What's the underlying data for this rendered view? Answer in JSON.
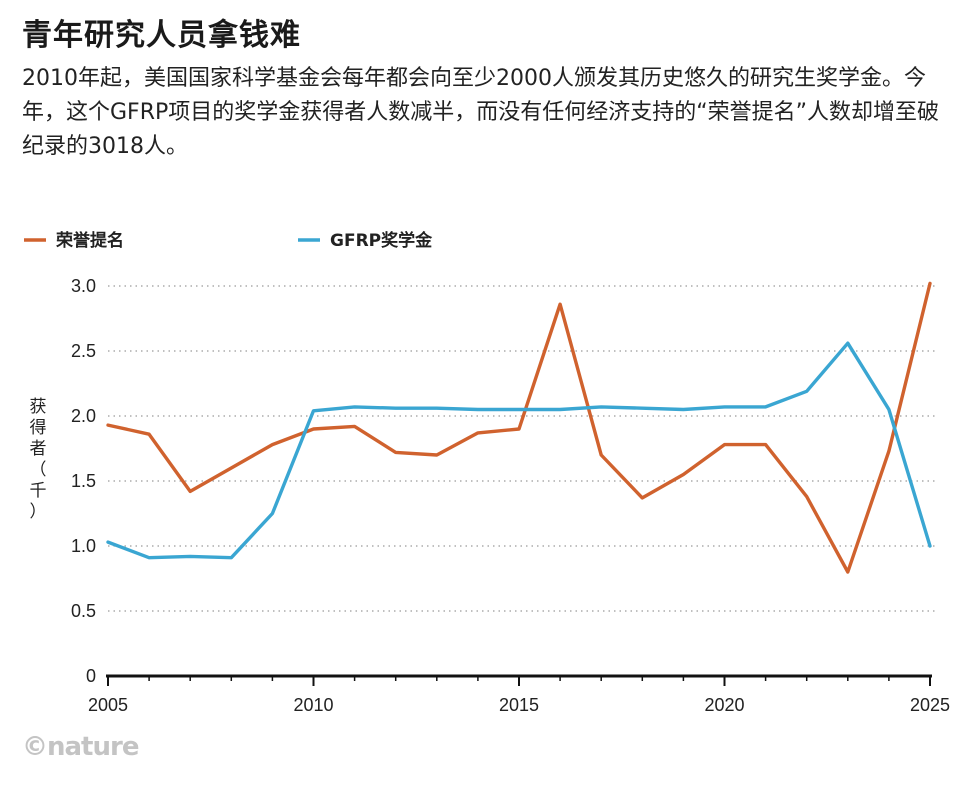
{
  "title": "青年研究人员拿钱难",
  "subtitle": "2010年起，美国国家科学基金会每年都会向至少2000人颁发其历史悠久的研究生奖学金。今年，这个GFRP项目的奖学金获得者人数减半，而没有任何经济支持的“荣誉提名”人数却增至破纪录的3018人。",
  "credit": "©nature",
  "colors": {
    "honorable": "#d0622e",
    "grfp": "#3aa6d2",
    "axis": "#111111",
    "grid": "#9a9a9a"
  },
  "chart_data": {
    "type": "line",
    "title": "青年研究人员拿钱难",
    "xlabel": "",
    "ylabel": "获得者（千）",
    "ylabel_chars": [
      "获",
      "得",
      "者",
      "（",
      "千",
      "）"
    ],
    "xlim": [
      2005,
      2025
    ],
    "ylim": [
      0,
      3.0
    ],
    "xticks": [
      2005,
      2010,
      2015,
      2020,
      2025
    ],
    "xtick_labels": [
      "2005",
      "2010",
      "2015",
      "2020",
      "2025"
    ],
    "yticks": [
      0,
      0.5,
      1.0,
      1.5,
      2.0,
      2.5,
      3.0
    ],
    "ytick_labels": [
      "0",
      "0.5",
      "1.0",
      "1.5",
      "2.0",
      "2.5",
      "3.0"
    ],
    "grid": "horizontal-dotted",
    "legend": "top-left",
    "x": [
      2005,
      2006,
      2007,
      2008,
      2009,
      2010,
      2011,
      2012,
      2013,
      2014,
      2015,
      2016,
      2017,
      2018,
      2019,
      2020,
      2021,
      2022,
      2023,
      2024,
      2025
    ],
    "series": [
      {
        "name": "荣誉提名",
        "color": "#d0622e",
        "values": [
          1.93,
          1.86,
          1.42,
          1.6,
          1.78,
          1.9,
          1.92,
          1.72,
          1.7,
          1.87,
          1.9,
          2.86,
          1.7,
          1.37,
          1.55,
          1.78,
          1.78,
          1.38,
          0.8,
          1.73,
          3.02
        ]
      },
      {
        "name": "GFRP奖学金",
        "color": "#3aa6d2",
        "values": [
          1.03,
          0.91,
          0.92,
          0.91,
          1.25,
          2.04,
          2.07,
          2.06,
          2.06,
          2.05,
          2.05,
          2.05,
          2.07,
          2.06,
          2.05,
          2.07,
          2.07,
          2.19,
          2.56,
          2.05,
          1.0
        ]
      }
    ]
  }
}
